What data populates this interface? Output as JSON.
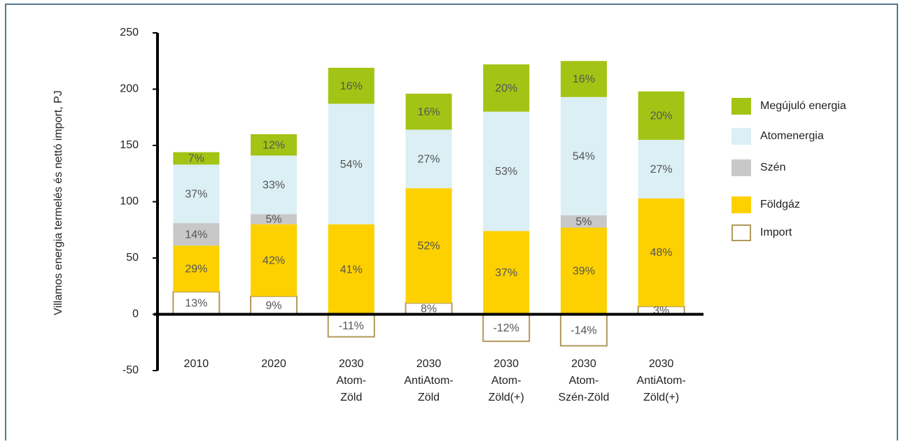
{
  "chart_data": {
    "type": "stacked_bar",
    "y_axis_label": "Villamos energia termelés és nettó import, PJ",
    "categories": [
      [
        "2010"
      ],
      [
        "2020"
      ],
      [
        "2030",
        "Atom-",
        "Zöld"
      ],
      [
        "2030",
        "AntiAtom-",
        "Zöld"
      ],
      [
        "2030",
        "Atom-",
        "Zöld(+)"
      ],
      [
        "2030",
        "Atom-",
        "Szén-Zöld"
      ],
      [
        "2030",
        "AntiAtom-",
        "Zöld(+)"
      ]
    ],
    "series": [
      {
        "name": "Import",
        "color": "#ffffff",
        "edge": "#b09a5c",
        "values": [
          20,
          16,
          -20,
          10,
          -24,
          -28,
          7
        ],
        "value_labels": [
          "13%",
          "9%",
          "-11%",
          "8%",
          "-12%",
          "-14%",
          "3%"
        ]
      },
      {
        "name": "Földgáz",
        "color": "#fdd000",
        "values": [
          41,
          64,
          80,
          102,
          74,
          77,
          96
        ],
        "value_labels": [
          "29%",
          "42%",
          "41%",
          "52%",
          "37%",
          "39%",
          "48%"
        ]
      },
      {
        "name": "Szén",
        "color": "#c8c8c8",
        "values": [
          20,
          9,
          null,
          null,
          null,
          11,
          null
        ],
        "value_labels": [
          "14%",
          "5%",
          null,
          null,
          null,
          "5%",
          null
        ]
      },
      {
        "name": "Atomenergia",
        "color": "#dbeff5",
        "values": [
          52,
          52,
          107,
          52,
          106,
          105,
          52
        ],
        "value_labels": [
          "37%",
          "33%",
          "54%",
          "27%",
          "53%",
          "54%",
          "27%"
        ]
      },
      {
        "name": "Megújuló energia",
        "color": "#a3c414",
        "values": [
          11,
          19,
          32,
          32,
          42,
          32,
          43
        ],
        "value_labels": [
          "7%",
          "12%",
          "16%",
          "16%",
          "20%",
          "16%",
          "20%"
        ]
      }
    ],
    "ylim": [
      -50,
      250
    ],
    "yticks": [
      -50,
      0,
      50,
      100,
      150,
      200,
      250
    ]
  }
}
